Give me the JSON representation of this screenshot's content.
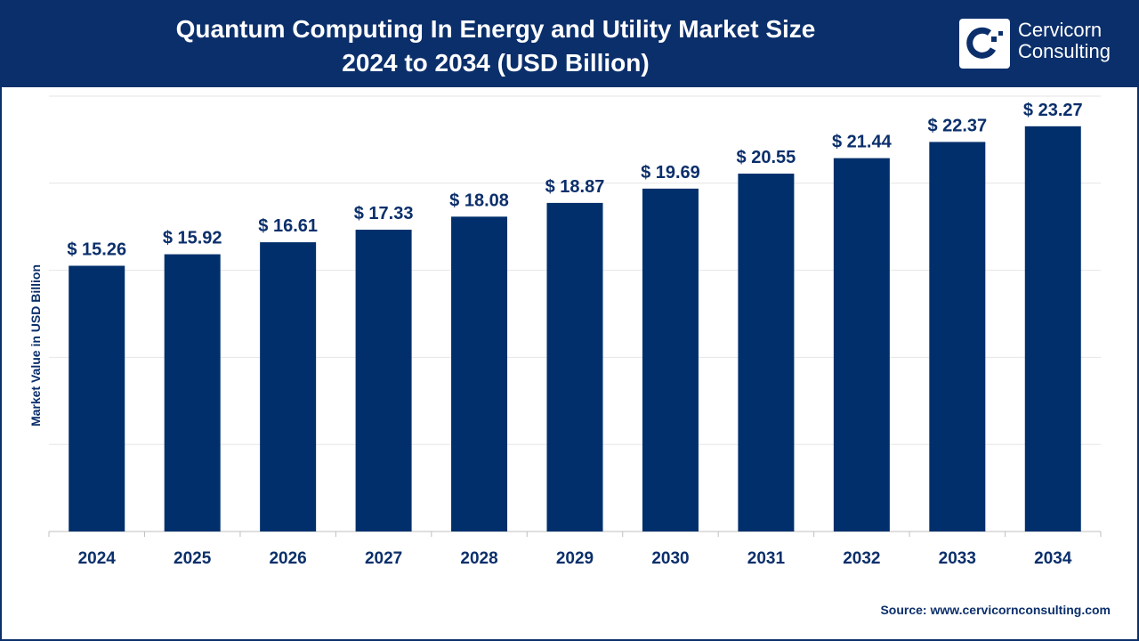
{
  "header": {
    "title_line1": "Quantum Computing In Energy and Utility Market Size",
    "title_line2": "2024 to 2034 (USD Billion)",
    "logo_line1": "Cervicorn",
    "logo_line2": "Consulting"
  },
  "source": "Source: www.cervicornconsulting.com",
  "colors": {
    "bar": "#002f6c",
    "header": "#0b2f6b",
    "grid": "#e6e6e6"
  },
  "chart_data": {
    "type": "bar",
    "title": "Quantum Computing In Energy and Utility Market Size 2024 to 2034 (USD Billion)",
    "xlabel": "",
    "ylabel": "Market Value in USD Billion",
    "categories": [
      "2024",
      "2025",
      "2026",
      "2027",
      "2028",
      "2029",
      "2030",
      "2031",
      "2032",
      "2033",
      "2034"
    ],
    "values": [
      15.26,
      15.92,
      16.61,
      17.33,
      18.08,
      18.87,
      19.69,
      20.55,
      21.44,
      22.37,
      23.27
    ],
    "data_labels": [
      "$ 15.26",
      "$ 15.92",
      "$ 16.61",
      "$ 17.33",
      "$ 18.08",
      "$ 18.87",
      "$ 19.69",
      "$ 20.55",
      "$ 21.44",
      "$ 22.37",
      "$ 23.27"
    ],
    "ylim": [
      0,
      25
    ],
    "grid": true,
    "grid_step": 5,
    "y_tick_labels_shown": false
  }
}
